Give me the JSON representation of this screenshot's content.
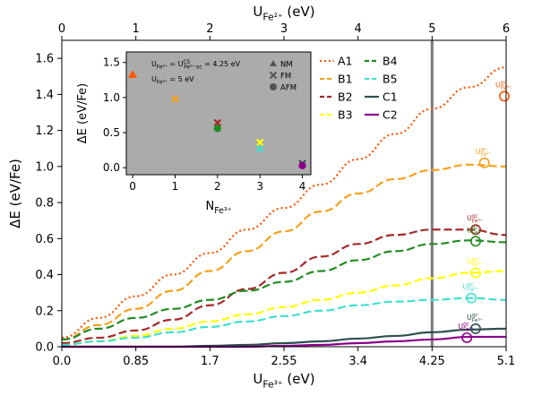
{
  "chart_data": [
    {
      "type": "line",
      "xlabel": "U_{Fe³⁺} (eV)",
      "ylabel": "ΔE (eV/Fe)",
      "x2label": "U_{Fe²⁺} (eV)",
      "xlim": [
        0,
        5.1
      ],
      "ylim": [
        0,
        1.7
      ],
      "x2lim": [
        0,
        6
      ],
      "xticks": [
        0.0,
        0.85,
        1.7,
        2.55,
        3.4,
        4.25,
        5.1
      ],
      "xtick_labels": [
        "0.0",
        "0.85",
        "1.7",
        "2.55",
        "3.4",
        "4.25",
        "5.1"
      ],
      "yticks": [
        0.0,
        0.2,
        0.4,
        0.6,
        0.8,
        1.0,
        1.2,
        1.4,
        1.6
      ],
      "ytick_labels": [
        "0.0",
        "0.2",
        "0.4",
        "0.6",
        "0.8",
        "1.0",
        "1.2",
        "1.4",
        "1.6"
      ],
      "x2ticks": [
        0,
        1,
        2,
        3,
        4,
        5,
        6
      ],
      "x2tick_labels": [
        "0",
        "1",
        "2",
        "3",
        "4",
        "5",
        "6"
      ],
      "vline_x": 4.25,
      "legend_position": "upper-right",
      "x": [
        0,
        0.425,
        0.85,
        1.275,
        1.7,
        2.125,
        2.55,
        2.975,
        3.4,
        3.825,
        4.25,
        4.675,
        5.1
      ],
      "series": [
        {
          "name": "A1",
          "color": "#ff5500",
          "dash": "2,3",
          "values": [
            0.05,
            0.16,
            0.28,
            0.4,
            0.52,
            0.65,
            0.77,
            0.9,
            1.04,
            1.18,
            1.32,
            1.44,
            1.55
          ]
        },
        {
          "name": "B1",
          "color": "#f5a21c",
          "dash": "9,4",
          "values": [
            0.04,
            0.12,
            0.21,
            0.31,
            0.42,
            0.53,
            0.64,
            0.75,
            0.85,
            0.93,
            0.98,
            1.01,
            1.0
          ]
        },
        {
          "name": "B2",
          "color": "#a52a2a",
          "dash": "9,4",
          "values": [
            0.02,
            0.05,
            0.09,
            0.15,
            0.23,
            0.32,
            0.41,
            0.5,
            0.57,
            0.62,
            0.65,
            0.65,
            0.62
          ]
        },
        {
          "name": "B3",
          "color": "#ffff00",
          "dash": "9,4",
          "values": [
            0.01,
            0.03,
            0.06,
            0.1,
            0.14,
            0.18,
            0.22,
            0.26,
            0.3,
            0.34,
            0.38,
            0.41,
            0.42
          ]
        },
        {
          "name": "B4",
          "color": "#228b22",
          "dash": "9,4",
          "values": [
            0.04,
            0.1,
            0.16,
            0.21,
            0.26,
            0.31,
            0.36,
            0.42,
            0.48,
            0.53,
            0.57,
            0.59,
            0.58
          ]
        },
        {
          "name": "B5",
          "color": "#40e0d0",
          "dash": "9,4",
          "values": [
            0.01,
            0.03,
            0.05,
            0.08,
            0.11,
            0.14,
            0.17,
            0.2,
            0.23,
            0.25,
            0.26,
            0.27,
            0.26
          ]
        },
        {
          "name": "C1",
          "color": "#2f4f4f",
          "dash": "",
          "values": [
            0.0,
            0.0,
            0.0,
            0.0,
            0.005,
            0.01,
            0.02,
            0.03,
            0.045,
            0.06,
            0.08,
            0.095,
            0.1
          ]
        },
        {
          "name": "C2",
          "color": "#8b008b",
          "dash": "",
          "values": [
            0.0,
            0.0,
            0.0,
            0.0,
            0.0,
            0.0,
            0.005,
            0.01,
            0.02,
            0.03,
            0.04,
            0.055,
            0.055
          ]
        }
      ],
      "u_gc_markers": [
        {
          "series": "A1",
          "x": 5.08,
          "y": 1.39,
          "label": "U^{gc}_{Fe³⁺}"
        },
        {
          "series": "B1",
          "x": 4.85,
          "y": 1.02,
          "label": "U^{gc}_{Fe³⁺}"
        },
        {
          "series": "B2",
          "x": 4.75,
          "y": 0.65,
          "label": "U^{gc}_{Fe³⁺}"
        },
        {
          "series": "B4",
          "x": 4.75,
          "y": 0.585,
          "label": "U^{gc}_{Fe³⁺}"
        },
        {
          "series": "B3",
          "x": 4.75,
          "y": 0.41,
          "label": "U^{gc}_{Fe³⁺}"
        },
        {
          "series": "B5",
          "x": 4.7,
          "y": 0.27,
          "label": "U^{gc}_{Fe³⁺}"
        },
        {
          "series": "C1",
          "x": 4.75,
          "y": 0.1,
          "label": "U^{gc}_{Fe³⁺}"
        },
        {
          "series": "C2",
          "x": 4.65,
          "y": 0.05,
          "label": "U^{gc}_{Fe³⁺}"
        }
      ]
    },
    {
      "type": "scatter",
      "xlabel": "N_{Fe³⁺}",
      "ylabel": "ΔE (eV/Fe)",
      "xlim": [
        -0.15,
        4.2
      ],
      "ylim": [
        -0.1,
        1.65
      ],
      "xticks": [
        0,
        1,
        2,
        3,
        4
      ],
      "xtick_labels": [
        "0",
        "1",
        "2",
        "3",
        "4"
      ],
      "yticks": [
        0.0,
        0.5,
        1.0,
        1.5
      ],
      "ytick_labels": [
        "0.0",
        "0.5",
        "1.0",
        "1.5"
      ],
      "background": "#ababab",
      "annotation_lines": [
        "U_{Fe²⁺} = U^{CS}_{Fe²⁺-sc} = 4.25 eV",
        "U_{Fe³⁺} = 5 eV"
      ],
      "legend": [
        {
          "label": "NM",
          "marker": "triangle"
        },
        {
          "label": "FM",
          "marker": "x"
        },
        {
          "label": "AFM",
          "marker": "circle"
        }
      ],
      "points": [
        {
          "x": 0,
          "y": 1.33,
          "marker": "triangle",
          "color": "#ff5500"
        },
        {
          "x": 1,
          "y": 0.98,
          "marker": "x",
          "color": "#f5a21c"
        },
        {
          "x": 2,
          "y": 0.64,
          "marker": "x",
          "color": "#a52a2a"
        },
        {
          "x": 2,
          "y": 0.56,
          "marker": "circle",
          "color": "#228b22"
        },
        {
          "x": 3,
          "y": 0.36,
          "marker": "x",
          "color": "#ffff00"
        },
        {
          "x": 3,
          "y": 0.27,
          "marker": "x",
          "color": "#40e0d0"
        },
        {
          "x": 4,
          "y": 0.06,
          "marker": "x",
          "color": "#2f4f4f"
        },
        {
          "x": 4,
          "y": 0.03,
          "marker": "circle",
          "color": "#8b008b"
        }
      ]
    }
  ]
}
